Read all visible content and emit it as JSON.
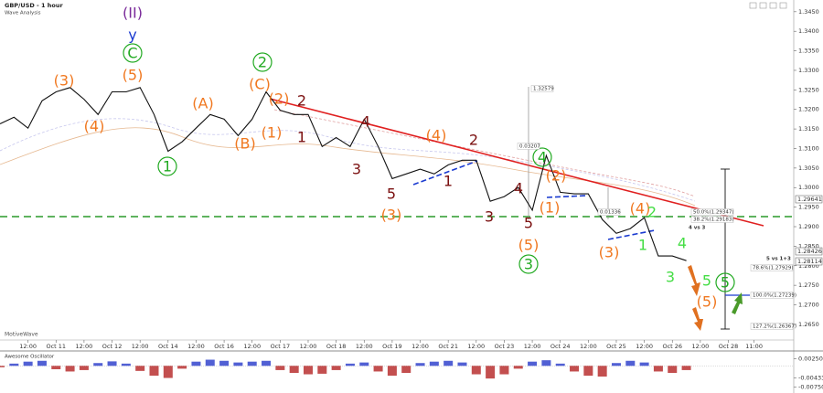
{
  "chart_data": [
    {
      "type": "line",
      "title": "GBP/USD - 1 hour",
      "subtitle": "Wave Analysis",
      "watermark": "MotiveWave",
      "color": "#111111",
      "x": [
        0,
        6,
        12,
        18,
        24,
        30,
        36,
        42,
        48,
        54,
        60,
        66,
        72,
        78,
        84,
        90,
        96,
        102,
        108,
        114,
        120,
        126,
        132,
        138,
        144,
        150,
        156,
        162,
        168,
        174,
        180,
        186,
        192,
        198,
        204,
        210,
        216,
        222,
        228,
        234,
        240,
        246,
        252,
        258,
        264,
        270,
        276,
        282,
        288,
        294
      ],
      "values": [
        1.3163,
        1.318,
        1.3152,
        1.3222,
        1.3245,
        1.3256,
        1.3226,
        1.3187,
        1.3245,
        1.3245,
        1.3256,
        1.3187,
        1.3093,
        1.3117,
        1.3152,
        1.3187,
        1.3175,
        1.3133,
        1.3175,
        1.3245,
        1.3198,
        1.3187,
        1.3187,
        1.3105,
        1.3128,
        1.3105,
        1.3175,
        1.3105,
        1.3023,
        1.3035,
        1.3047,
        1.3035,
        1.3058,
        1.307,
        1.307,
        1.2965,
        1.2977,
        1.3,
        1.2942,
        1.3082,
        1.2988,
        1.2984,
        1.2984,
        1.2918,
        1.2883,
        1.2895,
        1.2923,
        1.2825,
        1.2825,
        1.2813
      ],
      "xlim": [
        0,
        340
      ],
      "xticks": [
        {
          "value": 12,
          "label": "12:00"
        },
        {
          "value": 24,
          "label": "Oct 11"
        },
        {
          "value": 36,
          "label": "12:00"
        },
        {
          "value": 48,
          "label": "Oct 12"
        },
        {
          "value": 60,
          "label": "12:00"
        },
        {
          "value": 72,
          "label": "Oct 14"
        },
        {
          "value": 84,
          "label": "12:00"
        },
        {
          "value": 96,
          "label": "Oct 16"
        },
        {
          "value": 108,
          "label": "12:00"
        },
        {
          "value": 120,
          "label": "Oct 17"
        },
        {
          "value": 132,
          "label": "12:00"
        },
        {
          "value": 144,
          "label": "Oct 18"
        },
        {
          "value": 156,
          "label": "12:00"
        },
        {
          "value": 168,
          "label": "Oct 19"
        },
        {
          "value": 180,
          "label": "12:00"
        },
        {
          "value": 192,
          "label": "Oct 21"
        },
        {
          "value": 204,
          "label": "12:00"
        },
        {
          "value": 216,
          "label": "Oct 23"
        },
        {
          "value": 228,
          "label": "12:00"
        },
        {
          "value": 240,
          "label": "Oct 24"
        },
        {
          "value": 252,
          "label": "12:00"
        },
        {
          "value": 264,
          "label": "Oct 25"
        },
        {
          "value": 276,
          "label": "12:00"
        },
        {
          "value": 288,
          "label": "Oct 26"
        },
        {
          "value": 300,
          "label": "12:00"
        },
        {
          "value": 312,
          "label": "Oct 28"
        },
        {
          "value": 323,
          "label": "11:00"
        }
      ],
      "ylim": [
        1.261,
        1.348
      ],
      "yticks": [
        {
          "value": 1.345,
          "label": "1.3450"
        },
        {
          "value": 1.34,
          "label": "1.3400"
        },
        {
          "value": 1.335,
          "label": "1.3350"
        },
        {
          "value": 1.33,
          "label": "1.3300"
        },
        {
          "value": 1.325,
          "label": "1.3250"
        },
        {
          "value": 1.32,
          "label": "1.3200"
        },
        {
          "value": 1.315,
          "label": "1.3150"
        },
        {
          "value": 1.31,
          "label": "1.3100"
        },
        {
          "value": 1.305,
          "label": "1.3050"
        },
        {
          "value": 1.3,
          "label": "1.3000"
        },
        {
          "value": 1.295,
          "label": "1.2950"
        },
        {
          "value": 1.29,
          "label": "1.2900"
        },
        {
          "value": 1.285,
          "label": "1.2850"
        },
        {
          "value": 1.28,
          "label": "1.2800"
        },
        {
          "value": 1.275,
          "label": "1.2750"
        },
        {
          "value": 1.27,
          "label": "1.2700"
        },
        {
          "value": 1.265,
          "label": "1.2650"
        }
      ],
      "grid": false,
      "annotations": [
        {
          "text": "(II)",
          "color": "#7a2a9a"
        },
        {
          "text": "y",
          "color": "#1a3ad0"
        },
        {
          "text": "C",
          "color": "#22aa22"
        },
        {
          "text": "(3)",
          "color": "#f07820"
        },
        {
          "text": "(5)",
          "color": "#f07820"
        },
        {
          "text": "(4)",
          "color": "#f07820"
        },
        {
          "text": "1",
          "color": "#22aa22"
        },
        {
          "text": "(A)",
          "color": "#f07820"
        },
        {
          "text": "(B)",
          "color": "#f07820"
        },
        {
          "text": "(C)",
          "color": "#f07820"
        },
        {
          "text": "2",
          "color": "#22aa22"
        },
        {
          "text": "(2)",
          "color": "#f07820"
        },
        {
          "text": "(1)",
          "color": "#f07820"
        },
        {
          "text": "2",
          "color": "#7b1010"
        },
        {
          "text": "1",
          "color": "#7b1010"
        },
        {
          "text": "4",
          "color": "#7b1010"
        },
        {
          "text": "3",
          "color": "#7b1010"
        },
        {
          "text": "(4)",
          "color": "#f07820"
        },
        {
          "text": "2",
          "color": "#7b1010"
        },
        {
          "text": "1",
          "color": "#7b1010"
        },
        {
          "text": "5",
          "color": "#7b1010"
        },
        {
          "text": "(3)",
          "color": "#f07820"
        },
        {
          "text": "4",
          "color": "#7b1010"
        },
        {
          "text": "3",
          "color": "#7b1010"
        },
        {
          "text": "5",
          "color": "#7b1010"
        },
        {
          "text": "(5)",
          "color": "#f07820"
        },
        {
          "text": "3",
          "color": "#22aa22"
        },
        {
          "text": "4",
          "color": "#22aa22"
        },
        {
          "text": "(2)",
          "color": "#f07820"
        },
        {
          "text": "(1)",
          "color": "#f07820"
        },
        {
          "text": "(3)",
          "color": "#f07820"
        },
        {
          "text": "(4)",
          "color": "#f07820"
        },
        {
          "text": "2",
          "color": "#44dd44"
        },
        {
          "text": "1",
          "color": "#44dd44"
        },
        {
          "text": "4",
          "color": "#44dd44"
        },
        {
          "text": "3",
          "color": "#44dd44"
        },
        {
          "text": "5",
          "color": "#44dd44"
        },
        {
          "text": "5",
          "color": "#22aa22"
        },
        {
          "text": "(5)",
          "color": "#f07820"
        }
      ],
      "fib_labels": [
        "50.0%(1.29347)",
        "38.2%(1.29183)",
        "78.6%(1.27929)",
        "100.0%(1.27239)",
        "127.2%(1.26367)"
      ],
      "measure_labels": [
        "1.32579",
        "0.03207",
        "0.01336"
      ],
      "notes": [
        "4 vs 3",
        "5 vs 1+3"
      ],
      "price_labels": [
        "1.29641",
        "1.28426",
        "1.28114"
      ]
    },
    {
      "type": "bar",
      "title": "Awesome Oscillator",
      "x": [
        0,
        6,
        12,
        18,
        24,
        30,
        36,
        42,
        48,
        54,
        60,
        66,
        72,
        78,
        84,
        90,
        96,
        102,
        108,
        114,
        120,
        126,
        132,
        138,
        144,
        150,
        156,
        162,
        168,
        174,
        180,
        186,
        192,
        198,
        204,
        210,
        216,
        222,
        228,
        234,
        240,
        246,
        252,
        258,
        264,
        270,
        276,
        282,
        288,
        294
      ],
      "values": [
        -0.0005,
        0.0008,
        0.0015,
        0.0018,
        -0.0012,
        -0.002,
        -0.0015,
        0.001,
        0.0016,
        0.0008,
        -0.0018,
        -0.0035,
        -0.0043,
        -0.001,
        0.0015,
        0.0022,
        0.0018,
        0.0012,
        0.0015,
        0.0018,
        -0.0015,
        -0.0025,
        -0.003,
        -0.0028,
        -0.0015,
        0.0008,
        0.0012,
        -0.002,
        -0.0035,
        -0.0025,
        0.001,
        0.0015,
        0.0018,
        0.0012,
        -0.003,
        -0.0045,
        -0.003,
        -0.001,
        0.0015,
        0.002,
        0.0008,
        -0.002,
        -0.0035,
        -0.0038,
        0.001,
        0.0018,
        0.0012,
        -0.002,
        -0.0025,
        -0.0015
      ],
      "positive_color": "#3344cc",
      "negative_color": "#b83030",
      "ylim": [
        -0.009,
        0.004
      ],
      "yticks": [
        {
          "value": 0.0025,
          "label": "0.00250"
        },
        {
          "value": -0.00433,
          "label": "-0.00433"
        },
        {
          "value": -0.0075,
          "label": "-0.00750"
        }
      ]
    }
  ]
}
